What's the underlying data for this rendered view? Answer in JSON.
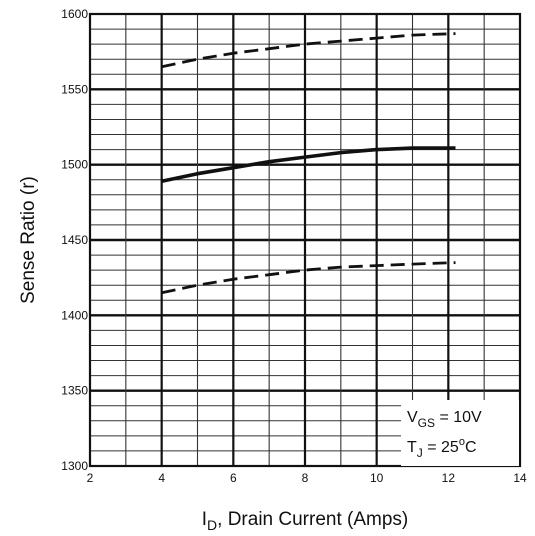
{
  "chart_data": {
    "type": "line",
    "xlabel": "I_D, Drain Current (Amps)",
    "xlabel_main": "I",
    "xlabel_sub": "D",
    "xlabel_rest": ", Drain Current (Amps)",
    "ylabel": "Sense Ratio (r)",
    "xlim": [
      2,
      14
    ],
    "ylim": [
      1300,
      1600
    ],
    "x_ticks": [
      2,
      4,
      6,
      8,
      10,
      12,
      14
    ],
    "x_tick_labels": [
      "2",
      "4",
      "6",
      "8",
      "10",
      "12",
      "14"
    ],
    "y_ticks": [
      1300,
      1350,
      1400,
      1450,
      1500,
      1550,
      1600
    ],
    "y_tick_labels": [
      "1300",
      "1350",
      "1400",
      "1450",
      "1500",
      "1550",
      "1600"
    ],
    "grid": true,
    "series": [
      {
        "style": "dashed",
        "x": [
          4,
          5,
          6,
          7,
          8,
          9,
          10,
          11,
          12.2
        ],
        "y": [
          1565,
          1570,
          1574,
          1577,
          1580,
          1582,
          1584,
          1586,
          1587
        ]
      },
      {
        "style": "solid",
        "x": [
          4,
          5,
          6,
          7,
          8,
          9,
          10,
          11,
          12.2
        ],
        "y": [
          1489,
          1494,
          1498,
          1502,
          1505,
          1508,
          1510,
          1511,
          1511
        ]
      },
      {
        "style": "dashed",
        "x": [
          4,
          5,
          6,
          7,
          8,
          9,
          10,
          11,
          12.2
        ],
        "y": [
          1415,
          1420,
          1424,
          1427,
          1430,
          1432,
          1433,
          1434,
          1435
        ]
      }
    ],
    "annotations": {
      "vgs": {
        "v": "V",
        "sub": "GS",
        "rest": " = 10V"
      },
      "tj": {
        "t": "T",
        "sub": "J",
        "rest": " = 25",
        "sup": "o",
        "unit": "C"
      }
    },
    "line_color": "#111111"
  }
}
